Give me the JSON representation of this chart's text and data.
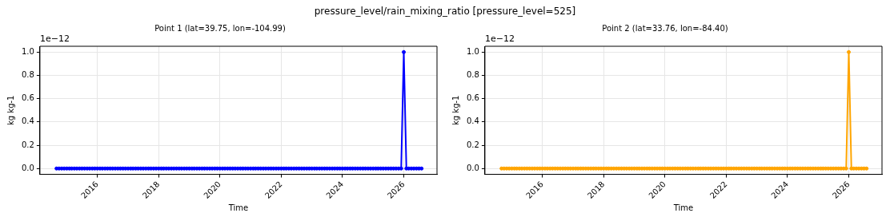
{
  "chart_data": [
    {
      "type": "line",
      "title": "Point 1 (lat=39.75, lon=-104.99)",
      "xlabel": "Time",
      "ylabel": "kg kg-1",
      "annotations": [
        "1e−12",
        "pressure_level/rain_mixing_ratio [pressure_level=525]"
      ],
      "x": [
        "2014-09",
        "2014-10",
        "2014-11",
        "2014-12",
        "2015-01",
        "2015-02",
        "2015-03",
        "2015-04",
        "2015-05",
        "2015-06",
        "2015-07",
        "2015-08",
        "2015-09",
        "2015-10",
        "2015-11",
        "2015-12",
        "2016-01",
        "2016-02",
        "2016-03",
        "2016-04",
        "2016-05",
        "2016-06",
        "2016-07",
        "2016-08",
        "2016-09",
        "2016-10",
        "2016-11",
        "2016-12",
        "2017-01",
        "2017-02",
        "2017-03",
        "2017-04",
        "2017-05",
        "2017-06",
        "2017-07",
        "2017-08",
        "2017-09",
        "2017-10",
        "2017-11",
        "2017-12",
        "2018-01",
        "2018-02",
        "2018-03",
        "2018-04",
        "2018-05",
        "2018-06",
        "2018-07",
        "2018-08",
        "2018-09",
        "2018-10",
        "2018-11",
        "2018-12",
        "2019-01",
        "2019-02",
        "2019-03",
        "2019-04",
        "2019-05",
        "2019-06",
        "2019-07",
        "2019-08",
        "2019-09",
        "2019-10",
        "2019-11",
        "2019-12",
        "2020-01",
        "2020-02",
        "2020-03",
        "2020-04",
        "2020-05",
        "2020-06",
        "2020-07",
        "2020-08",
        "2020-09",
        "2020-10",
        "2020-11",
        "2020-12",
        "2021-01",
        "2021-02",
        "2021-03",
        "2021-04",
        "2021-05",
        "2021-06",
        "2021-07",
        "2021-08",
        "2021-09",
        "2021-10",
        "2021-11",
        "2021-12",
        "2022-01",
        "2022-02",
        "2022-03",
        "2022-04",
        "2022-05",
        "2022-06",
        "2022-07",
        "2022-08",
        "2022-09",
        "2022-10",
        "2022-11",
        "2022-12",
        "2023-01",
        "2023-02",
        "2023-03",
        "2023-04",
        "2023-05",
        "2023-06",
        "2023-07",
        "2023-08",
        "2023-09",
        "2023-10",
        "2023-11",
        "2023-12",
        "2024-01",
        "2024-02",
        "2024-03",
        "2024-04",
        "2024-05",
        "2024-06",
        "2024-07",
        "2024-08",
        "2024-09",
        "2024-10",
        "2024-11",
        "2024-12",
        "2025-01",
        "2025-02",
        "2025-03",
        "2025-04",
        "2025-05",
        "2025-06",
        "2025-07",
        "2025-08",
        "2025-09",
        "2025-10",
        "2025-11",
        "2025-12",
        "2026-01",
        "2026-02",
        "2026-03",
        "2026-04",
        "2026-05",
        "2026-06",
        "2026-07",
        "2026-08"
      ],
      "series": [
        {
          "color": "#0000ff",
          "values": [
            0,
            0,
            0,
            0,
            0,
            0,
            0,
            0,
            0,
            0,
            0,
            0,
            0,
            0,
            0,
            0,
            0,
            0,
            0,
            0,
            0,
            0,
            0,
            0,
            0,
            0,
            0,
            0,
            0,
            0,
            0,
            0,
            0,
            0,
            0,
            0,
            0,
            0,
            0,
            0,
            0,
            0,
            0,
            0,
            0,
            0,
            0,
            0,
            0,
            0,
            0,
            0,
            0,
            0,
            0,
            0,
            0,
            0,
            0,
            0,
            0,
            0,
            0,
            0,
            0,
            0,
            0,
            0,
            0,
            0,
            0,
            0,
            0,
            0,
            0,
            0,
            0,
            0,
            0,
            0,
            0,
            0,
            0,
            0,
            0,
            0,
            0,
            0,
            0,
            0,
            0,
            0,
            0,
            0,
            0,
            0,
            0,
            0,
            0,
            0,
            0,
            0,
            0,
            0,
            0,
            0,
            0,
            0,
            0,
            0,
            0,
            0,
            0,
            0,
            0,
            0,
            0,
            0,
            0,
            0,
            0,
            0,
            0,
            0,
            0,
            0,
            0,
            0,
            0,
            0,
            0,
            0,
            0,
            0,
            0,
            0,
            1,
            0,
            0,
            0,
            0,
            0,
            0,
            0
          ]
        }
      ],
      "xlim": [
        "2014-02-15",
        "2027-02-01"
      ],
      "xticks": [
        "2016",
        "2018",
        "2020",
        "2022",
        "2024",
        "2026"
      ],
      "ylim": [
        -0.05,
        1.05
      ],
      "yticks": [
        {
          "value": 0,
          "label": "0.0"
        },
        {
          "value": 0.2,
          "label": "0.2"
        },
        {
          "value": 0.4,
          "label": "0.4"
        },
        {
          "value": 0.6,
          "label": "0.6"
        },
        {
          "value": 0.8,
          "label": "0.8"
        },
        {
          "value": 1,
          "label": "1.0"
        }
      ],
      "grid": true,
      "marker": "circle",
      "line_style": "solid"
    },
    {
      "type": "line",
      "title": "Point 2 (lat=33.76, lon=-84.40)",
      "xlabel": "Time",
      "ylabel": "kg kg-1",
      "annotations": [
        "1e−12"
      ],
      "x": [
        "2014-09",
        "2014-10",
        "2014-11",
        "2014-12",
        "2015-01",
        "2015-02",
        "2015-03",
        "2015-04",
        "2015-05",
        "2015-06",
        "2015-07",
        "2015-08",
        "2015-09",
        "2015-10",
        "2015-11",
        "2015-12",
        "2016-01",
        "2016-02",
        "2016-03",
        "2016-04",
        "2016-05",
        "2016-06",
        "2016-07",
        "2016-08",
        "2016-09",
        "2016-10",
        "2016-11",
        "2016-12",
        "2017-01",
        "2017-02",
        "2017-03",
        "2017-04",
        "2017-05",
        "2017-06",
        "2017-07",
        "2017-08",
        "2017-09",
        "2017-10",
        "2017-11",
        "2017-12",
        "2018-01",
        "2018-02",
        "2018-03",
        "2018-04",
        "2018-05",
        "2018-06",
        "2018-07",
        "2018-08",
        "2018-09",
        "2018-10",
        "2018-11",
        "2018-12",
        "2019-01",
        "2019-02",
        "2019-03",
        "2019-04",
        "2019-05",
        "2019-06",
        "2019-07",
        "2019-08",
        "2019-09",
        "2019-10",
        "2019-11",
        "2019-12",
        "2020-01",
        "2020-02",
        "2020-03",
        "2020-04",
        "2020-05",
        "2020-06",
        "2020-07",
        "2020-08",
        "2020-09",
        "2020-10",
        "2020-11",
        "2020-12",
        "2021-01",
        "2021-02",
        "2021-03",
        "2021-04",
        "2021-05",
        "2021-06",
        "2021-07",
        "2021-08",
        "2021-09",
        "2021-10",
        "2021-11",
        "2021-12",
        "2022-01",
        "2022-02",
        "2022-03",
        "2022-04",
        "2022-05",
        "2022-06",
        "2022-07",
        "2022-08",
        "2022-09",
        "2022-10",
        "2022-11",
        "2022-12",
        "2023-01",
        "2023-02",
        "2023-03",
        "2023-04",
        "2023-05",
        "2023-06",
        "2023-07",
        "2023-08",
        "2023-09",
        "2023-10",
        "2023-11",
        "2023-12",
        "2024-01",
        "2024-02",
        "2024-03",
        "2024-04",
        "2024-05",
        "2024-06",
        "2024-07",
        "2024-08",
        "2024-09",
        "2024-10",
        "2024-11",
        "2024-12",
        "2025-01",
        "2025-02",
        "2025-03",
        "2025-04",
        "2025-05",
        "2025-06",
        "2025-07",
        "2025-08",
        "2025-09",
        "2025-10",
        "2025-11",
        "2025-12",
        "2026-01",
        "2026-02",
        "2026-03",
        "2026-04",
        "2026-05",
        "2026-06",
        "2026-07",
        "2026-08"
      ],
      "series": [
        {
          "color": "#ffa500",
          "values": [
            0,
            0,
            0,
            0,
            0,
            0,
            0,
            0,
            0,
            0,
            0,
            0,
            0,
            0,
            0,
            0,
            0,
            0,
            0,
            0,
            0,
            0,
            0,
            0,
            0,
            0,
            0,
            0,
            0,
            0,
            0,
            0,
            0,
            0,
            0,
            0,
            0,
            0,
            0,
            0,
            0,
            0,
            0,
            0,
            0,
            0,
            0,
            0,
            0,
            0,
            0,
            0,
            0,
            0,
            0,
            0,
            0,
            0,
            0,
            0,
            0,
            0,
            0,
            0,
            0,
            0,
            0,
            0,
            0,
            0,
            0,
            0,
            0,
            0,
            0,
            0,
            0,
            0,
            0,
            0,
            0,
            0,
            0,
            0,
            0,
            0,
            0,
            0,
            0,
            0,
            0,
            0,
            0,
            0,
            0,
            0,
            0,
            0,
            0,
            0,
            0,
            0,
            0,
            0,
            0,
            0,
            0,
            0,
            0,
            0,
            0,
            0,
            0,
            0,
            0,
            0,
            0,
            0,
            0,
            0,
            0,
            0,
            0,
            0,
            0,
            0,
            0,
            0,
            0,
            0,
            0,
            0,
            0,
            0,
            0,
            0,
            1,
            0,
            0,
            0,
            0,
            0,
            0,
            0
          ]
        }
      ],
      "xlim": [
        "2014-02-15",
        "2027-02-01"
      ],
      "xticks": [
        "2016",
        "2018",
        "2020",
        "2022",
        "2024",
        "2026"
      ],
      "ylim": [
        -0.05,
        1.05
      ],
      "yticks": [
        {
          "value": 0,
          "label": "0.0"
        },
        {
          "value": 0.2,
          "label": "0.2"
        },
        {
          "value": 0.4,
          "label": "0.4"
        },
        {
          "value": 0.6,
          "label": "0.6"
        },
        {
          "value": 0.8,
          "label": "0.8"
        },
        {
          "value": 1,
          "label": "1.0"
        }
      ],
      "grid": true,
      "marker": "circle",
      "line_style": "solid"
    }
  ]
}
